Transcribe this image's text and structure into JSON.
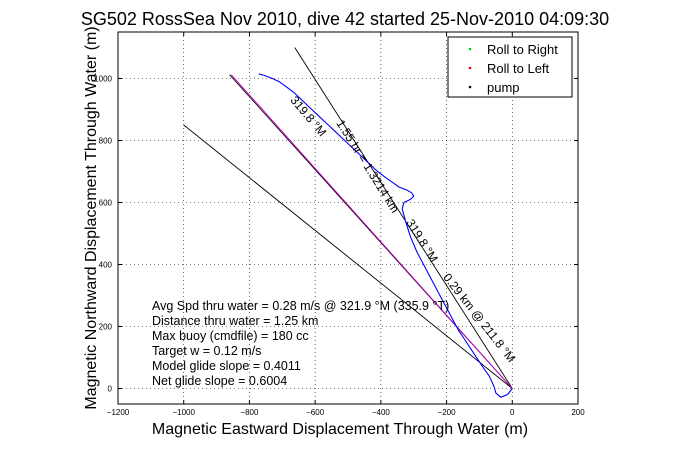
{
  "chart_data": {
    "type": "line",
    "title": "SG502 RossSea Nov 2010, dive 42 started 25-Nov-2010 04:09:30",
    "xlabel": "Magnetic Eastward Displacement Through Water (m)",
    "ylabel": "Magnetic Northward Displacement Through Water (m)",
    "xlim": [
      -1200,
      200
    ],
    "ylim": [
      -50,
      1150
    ],
    "xticks": [
      -1200,
      -1000,
      -800,
      -600,
      -400,
      -200,
      0,
      200
    ],
    "yticks": [
      0,
      200,
      400,
      600,
      800,
      1000
    ],
    "xtick_labels": [
      "−1200",
      "−1000",
      "−800",
      "−600",
      "−400",
      "−200",
      "0",
      "200"
    ],
    "ytick_labels": [
      "0",
      "200",
      "400",
      "600",
      "800",
      "1000"
    ],
    "grid": true,
    "legend_position": "top-right",
    "legend": [
      {
        "label": "Roll to Right",
        "color": "#00cc00"
      },
      {
        "label": "Roll to Left",
        "color": "#ff0000"
      },
      {
        "label": "pump",
        "color": "#000000"
      }
    ],
    "track": {
      "color": "#0000ff",
      "points": [
        [
          0,
          0
        ],
        [
          -15,
          -20
        ],
        [
          -35,
          -28
        ],
        [
          -50,
          -15
        ],
        [
          -55,
          5
        ],
        [
          -70,
          40
        ],
        [
          -90,
          70
        ],
        [
          -115,
          110
        ],
        [
          -140,
          150
        ],
        [
          -165,
          190
        ],
        [
          -190,
          240
        ],
        [
          -215,
          290
        ],
        [
          -240,
          340
        ],
        [
          -265,
          390
        ],
        [
          -290,
          440
        ],
        [
          -310,
          490
        ],
        [
          -325,
          540
        ],
        [
          -335,
          580
        ],
        [
          -330,
          600
        ],
        [
          -310,
          610
        ],
        [
          -300,
          620
        ],
        [
          -305,
          630
        ],
        [
          -320,
          640
        ],
        [
          -345,
          650
        ],
        [
          -365,
          665
        ],
        [
          -385,
          680
        ],
        [
          -410,
          700
        ],
        [
          -430,
          720
        ],
        [
          -455,
          745
        ],
        [
          -480,
          770
        ],
        [
          -500,
          790
        ],
        [
          -520,
          810
        ],
        [
          -540,
          830
        ],
        [
          -565,
          855
        ],
        [
          -590,
          880
        ],
        [
          -615,
          905
        ],
        [
          -640,
          930
        ],
        [
          -665,
          955
        ],
        [
          -690,
          975
        ],
        [
          -710,
          990
        ],
        [
          -730,
          1000
        ],
        [
          -755,
          1010
        ],
        [
          -772,
          1015
        ]
      ]
    },
    "reference_lines": [
      {
        "name": "heading",
        "color": "#000000",
        "points": [
          [
            0,
            0
          ],
          [
            -662,
            1100
          ]
        ],
        "label": "319.8 °M",
        "label_at": [
          -285,
          470
        ]
      },
      {
        "name": "bound-1",
        "color": "#000000",
        "points": [
          [
            0,
            0
          ],
          [
            -1000,
            850
          ]
        ],
        "label": "",
        "label_at": null
      },
      {
        "name": "bound-2",
        "color": "#000000",
        "points": [
          [
            0,
            0
          ],
          [
            -860,
            1012
          ]
        ],
        "label": "",
        "label_at": null
      },
      {
        "name": "target",
        "color": "#cc00cc",
        "points": [
          [
            0,
            0
          ],
          [
            -855,
            1012
          ]
        ],
        "label": "319.8 °M",
        "label_at": [
          -630,
          870
        ]
      },
      {
        "name": "target-dist",
        "color": "#000000",
        "points": null,
        "label": "1.55 hr = 1.3214 km",
        "label_at": [
          -450,
          710
        ]
      },
      {
        "name": "current",
        "color": "#000000",
        "points": null,
        "label": "0.29 km @ 211.8 °M",
        "label_at": [
          -110,
          220
        ]
      }
    ],
    "annotations": [
      "Avg Spd thru water =  0.28 m/s @ 321.9 °M (335.9 °T)",
      "Distance thru water = 1.25 km",
      "Max buoy (cmdfile) = 180 cc",
      "Target w = 0.12 m/s",
      "Model glide slope = 0.4011",
      "Net glide slope = 0.6004"
    ]
  }
}
